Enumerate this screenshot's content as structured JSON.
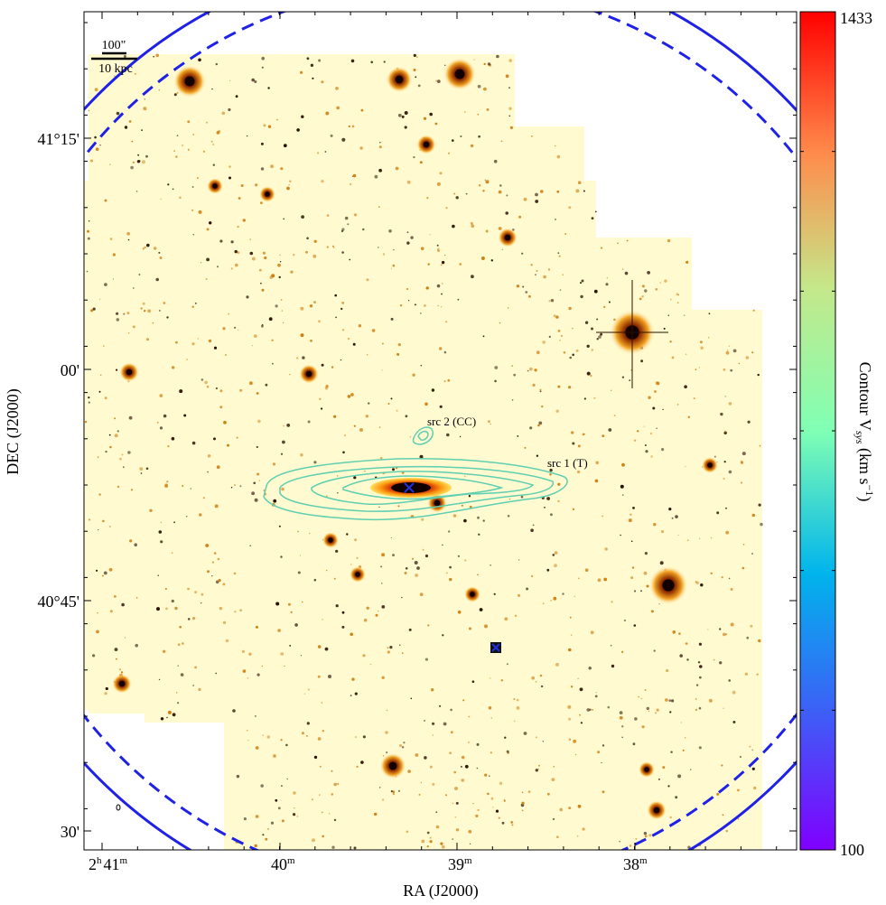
{
  "chart_data": {
    "type": "scatter",
    "title": "",
    "xlabel": "RA (J2000)",
    "ylabel": "DEC (J2000)",
    "colorbar": {
      "label": "Contour V$sys (km s⁻¹)",
      "label_parts": {
        "pre": "Contour V",
        "sub": "sys",
        "mid": " (km s",
        "sup": "−1",
        "post": ")"
      },
      "min": 100,
      "max": 1433,
      "min_label": "100",
      "max_label": "1433",
      "colormap": "rainbow"
    },
    "x_ticks": [
      {
        "value": "2h41m",
        "label_main": "2",
        "label_sup1": "h",
        "label_mid": "41",
        "label_sup2": "m"
      },
      {
        "value": "2h40m",
        "label_main": "",
        "label_sup1": "",
        "label_mid": "40",
        "label_sup2": "m"
      },
      {
        "value": "2h39m",
        "label_main": "",
        "label_sup1": "",
        "label_mid": "39",
        "label_sup2": "m"
      },
      {
        "value": "2h38m",
        "label_main": "",
        "label_sup1": "",
        "label_mid": "38",
        "label_sup2": "m"
      }
    ],
    "y_ticks": [
      {
        "value": "41°15'",
        "label": "41°15'"
      },
      {
        "value": "41°00'",
        "label": "00'"
      },
      {
        "value": "40°45'",
        "label": "40°45'"
      },
      {
        "value": "40°30'",
        "label": "30'"
      }
    ],
    "scale_bar": {
      "angular": "100\"",
      "physical": "10 kpc"
    },
    "annotations": [
      {
        "id": "src2",
        "text": "src 2 (CC)"
      },
      {
        "id": "src1",
        "text": "src 1 (T)"
      }
    ],
    "grid": false,
    "legend": "none",
    "colors": {
      "circle": "#1f22e6",
      "contour": "#5fcfb0",
      "marker": "#2030e0",
      "background_image": "#fffad0"
    },
    "extra_circles": [
      "solid",
      "dashed"
    ]
  }
}
